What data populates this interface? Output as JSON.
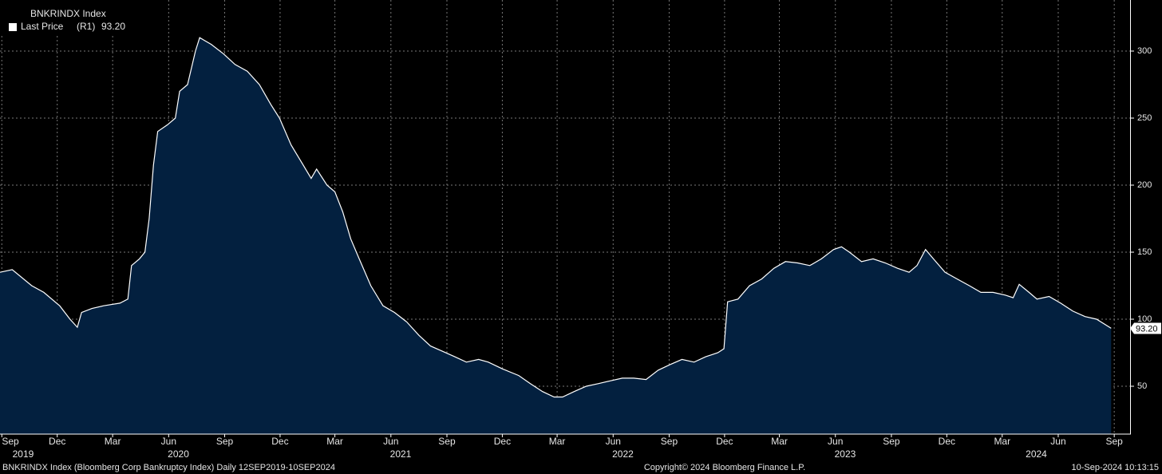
{
  "chart_data": {
    "type": "area",
    "title": "BNKRINDX Index",
    "series": [
      {
        "name": "Last Price",
        "color": "#ffffff",
        "fill": "#03203f",
        "x": [
          "2019-09-12",
          "2019-10-02",
          "2019-11-03",
          "2019-11-23",
          "2019-12-19",
          "2020-01-05",
          "2020-01-17",
          "2020-01-24",
          "2020-02-10",
          "2020-02-29",
          "2020-03-27",
          "2020-04-09",
          "2020-04-15",
          "2020-04-28",
          "2020-05-07",
          "2020-05-14",
          "2020-05-21",
          "2020-05-28",
          "2020-06-13",
          "2020-06-26",
          "2020-07-03",
          "2020-07-16",
          "2020-07-29",
          "2020-08-05",
          "2020-08-24",
          "2020-09-13",
          "2020-10-02",
          "2020-10-22",
          "2020-11-11",
          "2020-11-30",
          "2020-12-14",
          "2021-01-02",
          "2021-01-22",
          "2021-02-04",
          "2021-02-13",
          "2021-03-02",
          "2021-03-15",
          "2021-03-28",
          "2021-04-10",
          "2021-04-24",
          "2021-05-13",
          "2021-06-02",
          "2021-06-21",
          "2021-07-11",
          "2021-07-31",
          "2021-08-19",
          "2021-09-08",
          "2021-09-28",
          "2021-10-17",
          "2021-11-06",
          "2021-11-22",
          "2021-12-15",
          "2022-01-11",
          "2022-01-30",
          "2022-02-19",
          "2022-03-10",
          "2022-03-24",
          "2022-04-12",
          "2022-05-02",
          "2022-05-22",
          "2022-06-10",
          "2022-06-30",
          "2022-07-19",
          "2022-08-08",
          "2022-08-28",
          "2022-09-16",
          "2022-10-06",
          "2022-10-26",
          "2022-11-14",
          "2022-12-04",
          "2022-12-14",
          "2022-12-20",
          "2023-01-06",
          "2023-01-25",
          "2023-02-14",
          "2023-03-06",
          "2023-03-25",
          "2023-04-14",
          "2023-05-04",
          "2023-05-23",
          "2023-06-12",
          "2023-06-25",
          "2023-07-08",
          "2023-07-28",
          "2023-08-16",
          "2023-09-05",
          "2023-09-25",
          "2023-10-14",
          "2023-10-27",
          "2023-11-10",
          "2023-11-23",
          "2023-12-12",
          "2024-01-01",
          "2024-01-21",
          "2024-02-09",
          "2024-02-29",
          "2024-03-20",
          "2024-04-02",
          "2024-04-12",
          "2024-04-28",
          "2024-05-11",
          "2024-05-31",
          "2024-06-19",
          "2024-07-09",
          "2024-07-29",
          "2024-08-17",
          "2024-09-10"
        ],
        "values": [
          135,
          137,
          125,
          120,
          110,
          100,
          94,
          105,
          108,
          110,
          112,
          115,
          140,
          145,
          150,
          175,
          215,
          240,
          245,
          250,
          270,
          275,
          300,
          310,
          305,
          298,
          290,
          285,
          275,
          260,
          250,
          230,
          215,
          205,
          212,
          200,
          195,
          180,
          160,
          145,
          125,
          110,
          105,
          98,
          88,
          80,
          76,
          72,
          68,
          70,
          68,
          63,
          58,
          52,
          46,
          42,
          42,
          46,
          50,
          52,
          54,
          56,
          56,
          55,
          62,
          66,
          70,
          68,
          72,
          75,
          78,
          113,
          115,
          125,
          130,
          138,
          143,
          142,
          140,
          145,
          152,
          154,
          150,
          143,
          145,
          142,
          138,
          135,
          140,
          152,
          145,
          135,
          130,
          125,
          120,
          120,
          118,
          116,
          126,
          120,
          115,
          117,
          112,
          106,
          102,
          100,
          93.2
        ]
      }
    ],
    "legend_axis": "(R1)",
    "last_value_label": "93.20",
    "xlim": [
      "2019-09-12",
      "2024-10-11"
    ],
    "xticks": [
      {
        "value": "2019-09-15",
        "label": "Sep"
      },
      {
        "value": "2019-12-15",
        "label": "Dec"
      },
      {
        "value": "2020-03-15",
        "label": "Mar"
      },
      {
        "value": "2020-06-15",
        "label": "Jun"
      },
      {
        "value": "2020-09-15",
        "label": "Sep"
      },
      {
        "value": "2020-12-15",
        "label": "Dec"
      },
      {
        "value": "2021-03-15",
        "label": "Mar"
      },
      {
        "value": "2021-06-15",
        "label": "Jun"
      },
      {
        "value": "2021-09-15",
        "label": "Sep"
      },
      {
        "value": "2021-12-15",
        "label": "Dec"
      },
      {
        "value": "2022-03-15",
        "label": "Mar"
      },
      {
        "value": "2022-06-15",
        "label": "Jun"
      },
      {
        "value": "2022-09-15",
        "label": "Sep"
      },
      {
        "value": "2022-12-15",
        "label": "Dec"
      },
      {
        "value": "2023-03-15",
        "label": "Mar"
      },
      {
        "value": "2023-06-15",
        "label": "Jun"
      },
      {
        "value": "2023-09-15",
        "label": "Sep"
      },
      {
        "value": "2023-12-15",
        "label": "Dec"
      },
      {
        "value": "2024-03-15",
        "label": "Mar"
      },
      {
        "value": "2024-06-15",
        "label": "Jun"
      },
      {
        "value": "2024-09-15",
        "label": "Sep"
      }
    ],
    "year_ticks": [
      {
        "value": "2019-10-20",
        "label": "2019"
      },
      {
        "value": "2020-07-01",
        "label": "2020"
      },
      {
        "value": "2021-07-01",
        "label": "2021"
      },
      {
        "value": "2022-07-01",
        "label": "2022"
      },
      {
        "value": "2023-07-01",
        "label": "2023"
      },
      {
        "value": "2024-05-10",
        "label": "2024"
      }
    ],
    "ylim": [
      14.3,
      338.1
    ],
    "yticks": [
      50,
      100,
      150,
      200,
      250,
      300
    ],
    "y_axis_side": "right",
    "grid": true,
    "footer_left": "BNKRINDX Index (Bloomberg Corp Bankruptcy Index)  Daily 12SEP2019-10SEP2024",
    "footer_center": "Copyright© 2024 Bloomberg Finance L.P.",
    "footer_right": "10-Sep-2024 10:13:15"
  }
}
